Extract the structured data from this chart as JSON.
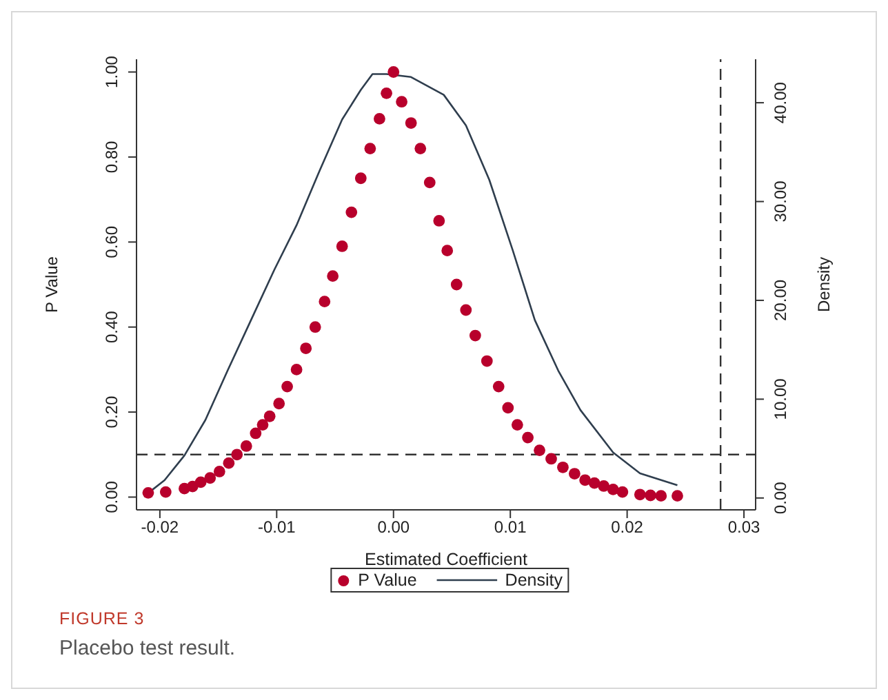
{
  "chart_data": {
    "type": "scatter",
    "xlabel": "Estimated Coefficient",
    "ylabel": "P Value",
    "y2label": "Density",
    "annotations": [
      "FIGURE 3",
      "Placebo test result."
    ],
    "xlim": [
      -0.022,
      0.031
    ],
    "ylim": [
      -0.03,
      1.03
    ],
    "y2lim": [
      -1.2,
      44.4
    ],
    "xticks": [
      {
        "value": -0.02,
        "label": "-0.02"
      },
      {
        "value": -0.01,
        "label": "-0.01"
      },
      {
        "value": 0,
        "label": "0.00"
      },
      {
        "value": 0.01,
        "label": "0.01"
      },
      {
        "value": 0.02,
        "label": "0.02"
      },
      {
        "value": 0.03,
        "label": "0.03"
      }
    ],
    "yticks": [
      {
        "value": 0,
        "label": "0.00"
      },
      {
        "value": 0.2,
        "label": "0.20"
      },
      {
        "value": 0.4,
        "label": "0.40"
      },
      {
        "value": 0.6,
        "label": "0.60"
      },
      {
        "value": 0.8,
        "label": "0.80"
      },
      {
        "value": 1,
        "label": "1.00"
      }
    ],
    "y2ticks": [
      {
        "value": 0,
        "label": "0.00"
      },
      {
        "value": 10,
        "label": "10.00"
      },
      {
        "value": 20,
        "label": "20.00"
      },
      {
        "value": 30,
        "label": "30.00"
      },
      {
        "value": 40,
        "label": "40.00"
      }
    ],
    "grid": false,
    "legend": "bottom",
    "marker": "circle",
    "ref_lines": [
      {
        "axis": "y",
        "value": 0.1,
        "line_style": "dashed",
        "color": "#333333"
      },
      {
        "axis": "x",
        "value": 0.028,
        "line_style": "dashed",
        "color": "#333333"
      }
    ],
    "series": [
      {
        "name": "P Value",
        "color": "#b8002c",
        "x": [
          -0.021,
          -0.0195,
          -0.0179,
          -0.0172,
          -0.0165,
          -0.0157,
          -0.0149,
          -0.0141,
          -0.0134,
          -0.0126,
          -0.0118,
          -0.0112,
          -0.0106,
          -0.0098,
          -0.0091,
          -0.0083,
          -0.0075,
          -0.0067,
          -0.0059,
          -0.0052,
          -0.0044,
          -0.0036,
          -0.0028,
          -0.002,
          -0.0012,
          -0.0006,
          0,
          0.0007,
          0.0015,
          0.0023,
          0.0031,
          0.0039,
          0.0046,
          0.0054,
          0.0062,
          0.007,
          0.008,
          0.009,
          0.0098,
          0.0106,
          0.0115,
          0.0125,
          0.0135,
          0.0145,
          0.0155,
          0.0164,
          0.0172,
          0.018,
          0.0188,
          0.0196,
          0.0211,
          0.022,
          0.0229,
          0.0243
        ],
        "values": [
          0.01,
          0.012,
          0.02,
          0.025,
          0.035,
          0.045,
          0.06,
          0.08,
          0.1,
          0.12,
          0.15,
          0.17,
          0.19,
          0.22,
          0.26,
          0.3,
          0.35,
          0.4,
          0.46,
          0.52,
          0.59,
          0.67,
          0.75,
          0.82,
          0.89,
          0.95,
          1,
          0.93,
          0.88,
          0.82,
          0.74,
          0.65,
          0.58,
          0.5,
          0.44,
          0.38,
          0.32,
          0.26,
          0.21,
          0.17,
          0.14,
          0.11,
          0.09,
          0.07,
          0.055,
          0.04,
          0.033,
          0.026,
          0.018,
          0.012,
          0.006,
          0.004,
          0.003,
          0.003
        ]
      },
      {
        "name": "Density",
        "type": "line",
        "axis": "y2",
        "color": "#2f3e4e",
        "marker": "none",
        "line_style": "solid",
        "x": [
          -0.021,
          -0.0196,
          -0.0179,
          -0.0161,
          -0.0142,
          -0.0122,
          -0.0102,
          -0.0083,
          -0.0063,
          -0.0044,
          -0.0028,
          -0.0018,
          -0.0006,
          0.0015,
          0.0043,
          0.0062,
          0.0082,
          0.0102,
          0.0121,
          0.0141,
          0.016,
          0.0188,
          0.0211,
          0.0243
        ],
        "values": [
          0.5,
          1.8,
          4.3,
          7.9,
          12.9,
          18,
          23.1,
          27.6,
          33.2,
          38.3,
          41.3,
          42.9,
          42.9,
          42.6,
          40.8,
          37.7,
          32.2,
          25.1,
          18,
          12.9,
          8.9,
          4.6,
          2.5,
          1.3
        ]
      }
    ]
  }
}
